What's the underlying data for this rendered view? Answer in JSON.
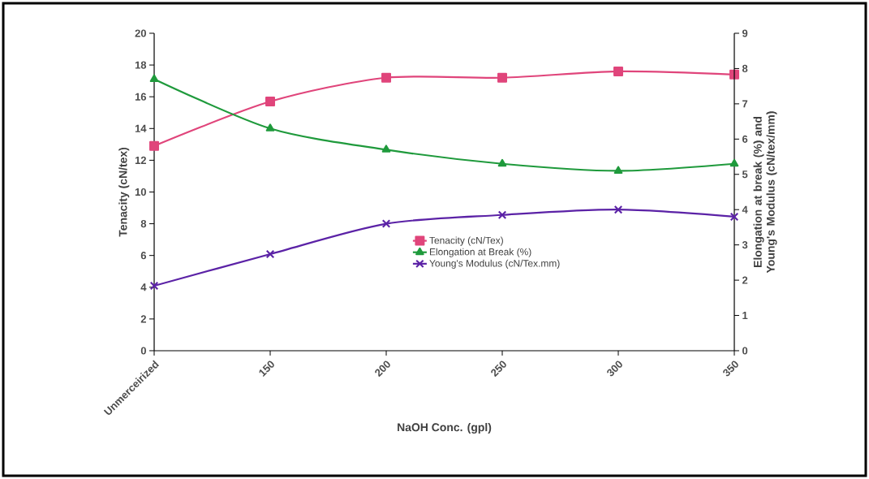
{
  "chart_data": {
    "type": "line",
    "xlabel": "NaOH Conc. (gpl)",
    "ylabel": "Tenacity (cN/tex)",
    "y2label": "Elongation at break (%) and Young's Modulus (cN/tex/mm)",
    "categories": [
      "Unmerceirized",
      "150",
      "200",
      "250",
      "300",
      "350"
    ],
    "series": [
      {
        "name": "Tenacity (cN/Tex)",
        "color": "#e0457b",
        "marker": "square",
        "values": [
          12.9,
          15.7,
          17.2,
          17.2,
          17.6,
          17.4
        ]
      },
      {
        "name": "Elongation at Break (%)",
        "color": "#1f9a3c",
        "marker": "triangle",
        "axis": "y2",
        "values": [
          7.7,
          6.3,
          5.7,
          5.3,
          5.1,
          5.3
        ]
      },
      {
        "name": "Young's Modulus (cN/Tex.mm)",
        "color": "#5b22a6",
        "marker": "cross",
        "axis": "y2",
        "values": [
          1.84,
          2.74,
          3.6,
          3.85,
          4.0,
          3.8
        ]
      }
    ],
    "ylim": [
      0,
      20
    ],
    "yticks": [
      0,
      2,
      4,
      6,
      8,
      10,
      12,
      14,
      16,
      18,
      20
    ],
    "y2lim": [
      0,
      9
    ],
    "y2ticks": [
      0,
      1,
      2,
      3,
      4,
      5,
      6,
      7,
      8,
      9
    ],
    "legend": "center right",
    "grid": false
  }
}
